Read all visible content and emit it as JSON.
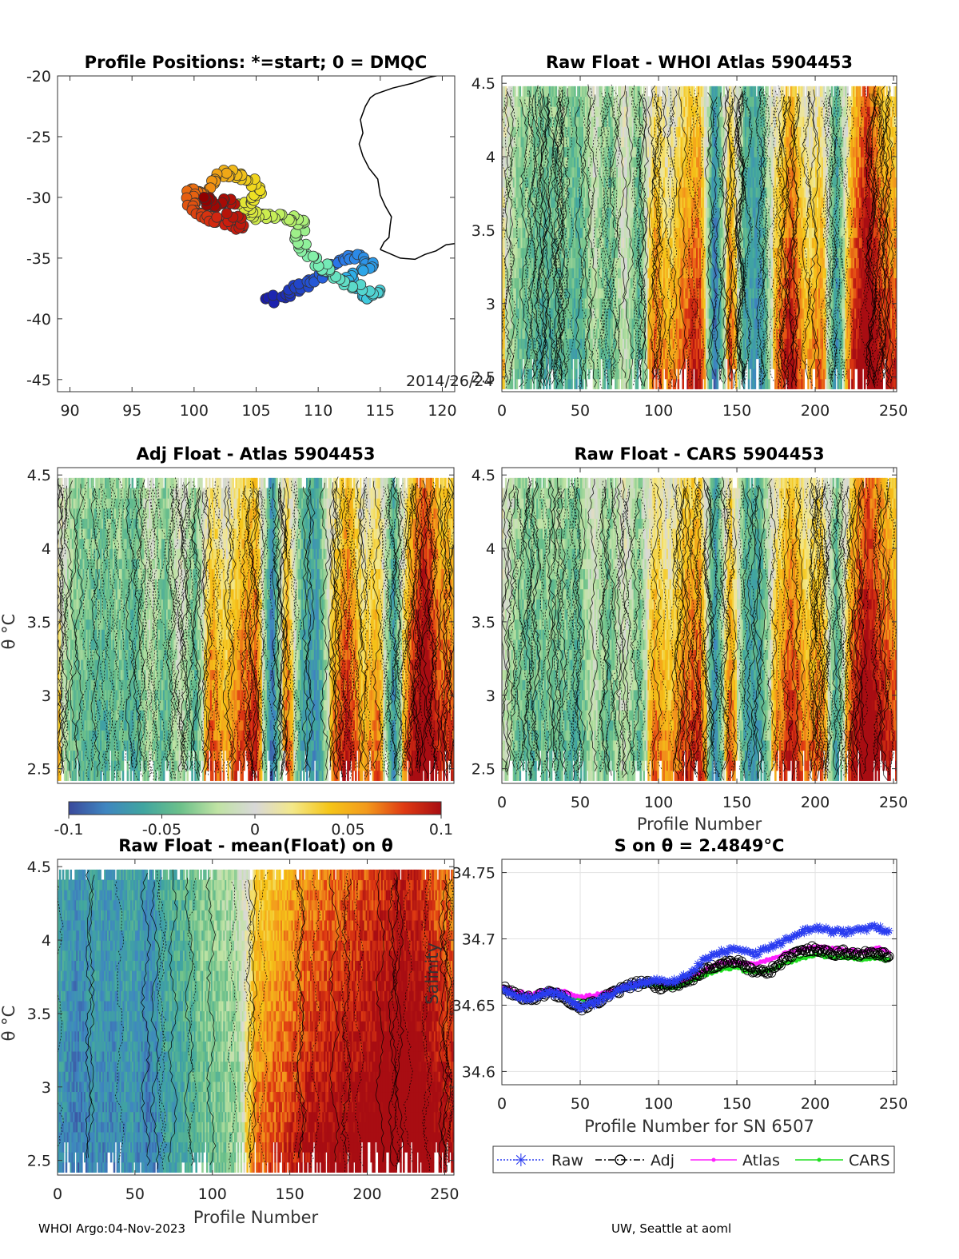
{
  "footer": {
    "left": "WHOI Argo:04-Nov-2023",
    "right": "UW, Seattle at aoml"
  },
  "colors": {
    "colormap": [
      "#3a4a9c",
      "#3f86c0",
      "#40a5a0",
      "#6cc08a",
      "#c0e3a4",
      "#d8d8d8",
      "#f3e88a",
      "#f5c518",
      "#f39a1c",
      "#df3a12",
      "#a80d12"
    ],
    "trajectory_cmap": [
      "#1a1aa8",
      "#2a70e8",
      "#30c0e8",
      "#7ef0b0",
      "#c0f060",
      "#f0e020",
      "#f08010",
      "#d02010",
      "#900000"
    ],
    "raw": "#2a3cf0",
    "adj": "#000000",
    "atlas": "#ff20ff",
    "cars": "#20e020",
    "coast": "#000000"
  },
  "chart_data": [
    {
      "id": "map",
      "type": "scatter",
      "title": "Profile Positions: *=start; 0 = DMQC",
      "xlim": [
        89,
        121
      ],
      "ylim": [
        -46,
        -20
      ],
      "xticks": [
        90,
        95,
        100,
        105,
        110,
        115,
        120
      ],
      "yticks": [
        -20,
        -25,
        -30,
        -35,
        -40,
        -45
      ],
      "annotation": "2014/26/24",
      "track_anchors": [
        [
          106.0,
          -38.6
        ],
        [
          107.5,
          -38.1
        ],
        [
          108.8,
          -37.2
        ],
        [
          110.2,
          -36.6
        ],
        [
          111.5,
          -35.4
        ],
        [
          113.2,
          -34.8
        ],
        [
          114.4,
          -35.6
        ],
        [
          112.2,
          -36.8
        ],
        [
          113.5,
          -38.2
        ],
        [
          115.2,
          -37.9
        ],
        [
          112.0,
          -37.0
        ],
        [
          110.5,
          -35.8
        ],
        [
          109.2,
          -34.7
        ],
        [
          108.3,
          -33.3
        ],
        [
          108.8,
          -32.0
        ],
        [
          107.4,
          -31.7
        ],
        [
          106.0,
          -31.5
        ],
        [
          104.8,
          -31.6
        ],
        [
          104.0,
          -30.5
        ],
        [
          105.2,
          -29.8
        ],
        [
          104.6,
          -28.6
        ],
        [
          103.0,
          -27.9
        ],
        [
          101.9,
          -28.4
        ],
        [
          100.7,
          -29.8
        ],
        [
          99.8,
          -29.3
        ],
        [
          99.7,
          -30.6
        ],
        [
          100.8,
          -31.6
        ],
        [
          102.4,
          -31.9
        ],
        [
          103.8,
          -32.6
        ],
        [
          102.6,
          -30.2
        ],
        [
          101.4,
          -30.6
        ],
        [
          100.8,
          -30.0
        ]
      ],
      "coast": [
        [
          115.0,
          -34.3
        ],
        [
          115.3,
          -33.7
        ],
        [
          115.7,
          -33.3
        ],
        [
          115.8,
          -32.3
        ],
        [
          115.9,
          -31.6
        ],
        [
          115.4,
          -30.7
        ],
        [
          115.0,
          -29.8
        ],
        [
          114.8,
          -28.5
        ],
        [
          114.1,
          -27.6
        ],
        [
          113.6,
          -26.6
        ],
        [
          113.3,
          -25.6
        ],
        [
          113.6,
          -24.7
        ],
        [
          113.4,
          -23.6
        ],
        [
          113.8,
          -22.5
        ],
        [
          114.2,
          -21.8
        ],
        [
          114.6,
          -21.5
        ],
        [
          116.0,
          -21.0
        ],
        [
          117.6,
          -20.6
        ],
        [
          119.0,
          -20.1
        ],
        [
          120.5,
          -19.8
        ],
        [
          121.0,
          -19.6
        ]
      ],
      "coast_south": [
        [
          115.0,
          -34.3
        ],
        [
          115.7,
          -34.6
        ],
        [
          116.6,
          -35.0
        ],
        [
          117.8,
          -35.1
        ],
        [
          118.6,
          -34.7
        ],
        [
          119.5,
          -34.4
        ],
        [
          120.3,
          -33.9
        ],
        [
          121.0,
          -33.8
        ]
      ]
    },
    {
      "id": "raw_whoi",
      "type": "heatmap",
      "title": "Raw Float - WHOI Atlas  5904453",
      "xlim": [
        0,
        252
      ],
      "ylim": [
        2.4,
        4.55
      ],
      "xticks": [
        0,
        50,
        100,
        150,
        200,
        250
      ],
      "yticks": [
        2.5,
        3,
        3.5,
        4,
        4.5
      ],
      "clim": [
        -0.1,
        0.1
      ],
      "n_profiles": 252,
      "base_profile": [
        0.005,
        -0.03,
        -0.035,
        -0.04,
        -0.03,
        -0.045,
        -0.01,
        -0.04,
        0.0,
        -0.04,
        0.035,
        0.01,
        0.04,
        0.05,
        -0.08,
        0.04,
        -0.05,
        -0.06,
        0.02,
        0.06,
        0.01,
        0.03,
        -0.06,
        0.045,
        0.09,
        0.05,
        0.04
      ],
      "depth_gradient": 0.03
    },
    {
      "id": "adj_atlas",
      "type": "heatmap",
      "title": "Adj Float - Atlas  5904453",
      "xlim": [
        0,
        252
      ],
      "ylim": [
        2.4,
        4.55
      ],
      "xticks": [],
      "yticks": [
        2.5,
        3,
        3.5,
        4,
        4.5
      ],
      "ylabel": "θ °C",
      "clim": [
        -0.1,
        0.1
      ],
      "n_profiles": 252,
      "base_profile": [
        0.005,
        -0.03,
        -0.035,
        -0.04,
        -0.03,
        -0.045,
        -0.01,
        -0.04,
        0.0,
        -0.04,
        0.035,
        0.01,
        0.04,
        0.05,
        -0.08,
        0.04,
        -0.05,
        -0.06,
        0.02,
        0.06,
        0.01,
        0.03,
        -0.06,
        0.045,
        0.09,
        0.05,
        0.04
      ],
      "depth_gradient": 0.03,
      "colorbar": {
        "ticks": [
          -0.1,
          -0.05,
          0,
          0.05,
          0.1
        ],
        "ticklabels": [
          "-0.1",
          "-0.05",
          "0",
          "0.05",
          "0.1"
        ]
      }
    },
    {
      "id": "raw_cars",
      "type": "heatmap",
      "title": "Raw Float - CARS  5904453",
      "xlim": [
        0,
        252
      ],
      "ylim": [
        2.4,
        4.55
      ],
      "xticks": [
        0,
        50,
        100,
        150,
        200,
        250
      ],
      "yticks": [
        2.5,
        3,
        3.5,
        4,
        4.5
      ],
      "xlabel": "Profile Number",
      "clim": [
        -0.1,
        0.1
      ],
      "n_profiles": 252,
      "base_profile": [
        0.0,
        -0.03,
        -0.035,
        -0.03,
        -0.03,
        -0.04,
        -0.005,
        -0.035,
        0.0,
        -0.035,
        0.03,
        0.01,
        0.04,
        0.05,
        -0.07,
        0.04,
        -0.05,
        -0.05,
        0.02,
        0.055,
        0.02,
        0.035,
        -0.05,
        0.05,
        0.085,
        0.06,
        0.04
      ],
      "depth_gradient": 0.03
    },
    {
      "id": "raw_mean",
      "type": "heatmap",
      "title": "Raw Float - mean(Float) on θ",
      "xlim": [
        0,
        256
      ],
      "ylim": [
        2.4,
        4.55
      ],
      "xticks": [
        0,
        50,
        100,
        150,
        200,
        250
      ],
      "yticks": [
        2.5,
        3,
        3.5,
        4,
        4.5
      ],
      "xlabel": "Profile Number",
      "ylabel": "θ °C",
      "clim": [
        -0.1,
        0.1
      ],
      "n_profiles": 256,
      "base_profile": [
        -0.06,
        -0.075,
        -0.065,
        -0.07,
        -0.06,
        -0.075,
        -0.055,
        -0.05,
        -0.035,
        -0.03,
        -0.02,
        0.04,
        0.05,
        0.06,
        0.07,
        0.075,
        0.08,
        0.085,
        0.09,
        0.1,
        0.095,
        0.08,
        0.07
      ],
      "depth_gradient": 0.02
    },
    {
      "id": "salinity",
      "type": "line",
      "title": "S on θ = 2.4849°C",
      "xlim": [
        0,
        252
      ],
      "ylim": [
        34.59,
        34.76
      ],
      "xticks": [
        0,
        50,
        100,
        150,
        200,
        250
      ],
      "yticks": [
        34.6,
        34.65,
        34.7,
        34.75
      ],
      "yticklabels": [
        "34.6",
        "34.65",
        "34.7",
        "34.75"
      ],
      "xlabel": "Profile Number for SN 6507",
      "ylabel": "Salinity",
      "grid": true,
      "legend_position": "below",
      "series": [
        {
          "name": "Raw",
          "x": [
            0,
            10,
            20,
            30,
            40,
            50,
            60,
            70,
            80,
            90,
            100,
            110,
            120,
            130,
            140,
            150,
            160,
            170,
            180,
            190,
            200,
            210,
            220,
            230,
            240,
            248
          ],
          "y": [
            34.663,
            34.657,
            34.655,
            34.66,
            34.657,
            34.648,
            34.652,
            34.658,
            34.664,
            34.667,
            34.669,
            34.668,
            34.674,
            34.685,
            34.69,
            34.692,
            34.688,
            34.693,
            34.698,
            34.705,
            34.708,
            34.706,
            34.705,
            34.707,
            34.709,
            34.704
          ]
        },
        {
          "name": "Adj",
          "x": [
            0,
            10,
            20,
            30,
            40,
            50,
            60,
            70,
            80,
            90,
            100,
            110,
            120,
            130,
            140,
            150,
            160,
            170,
            180,
            190,
            200,
            210,
            220,
            230,
            240,
            248
          ],
          "y": [
            34.663,
            34.657,
            34.655,
            34.66,
            34.656,
            34.648,
            34.652,
            34.658,
            34.664,
            34.667,
            34.664,
            34.665,
            34.669,
            34.676,
            34.682,
            34.683,
            34.676,
            34.675,
            34.684,
            34.69,
            34.693,
            34.689,
            34.69,
            34.688,
            34.69,
            34.686
          ]
        },
        {
          "name": "Atlas",
          "x": [
            0,
            10,
            20,
            30,
            40,
            50,
            60,
            70,
            80,
            90,
            100,
            110,
            120,
            130,
            140,
            150,
            160,
            170,
            180,
            190,
            200,
            210,
            220,
            230,
            240,
            248
          ],
          "y": [
            34.664,
            34.66,
            34.658,
            34.662,
            34.66,
            34.656,
            34.658,
            34.661,
            34.665,
            34.667,
            34.667,
            34.667,
            34.671,
            34.677,
            34.682,
            34.683,
            34.681,
            34.684,
            34.689,
            34.692,
            34.694,
            34.693,
            34.692,
            34.69,
            34.693,
            34.69
          ]
        },
        {
          "name": "CARS",
          "x": [
            0,
            10,
            20,
            30,
            40,
            50,
            60,
            70,
            80,
            90,
            100,
            110,
            120,
            130,
            140,
            150,
            160,
            170,
            180,
            190,
            200,
            210,
            220,
            230,
            240,
            248
          ],
          "y": [
            34.662,
            34.658,
            34.656,
            34.66,
            34.656,
            34.654,
            34.656,
            34.659,
            34.663,
            34.665,
            34.665,
            34.663,
            34.668,
            34.673,
            34.677,
            34.678,
            34.674,
            34.676,
            34.681,
            34.685,
            34.688,
            34.686,
            34.686,
            34.684,
            34.686,
            34.683
          ]
        }
      ]
    }
  ]
}
